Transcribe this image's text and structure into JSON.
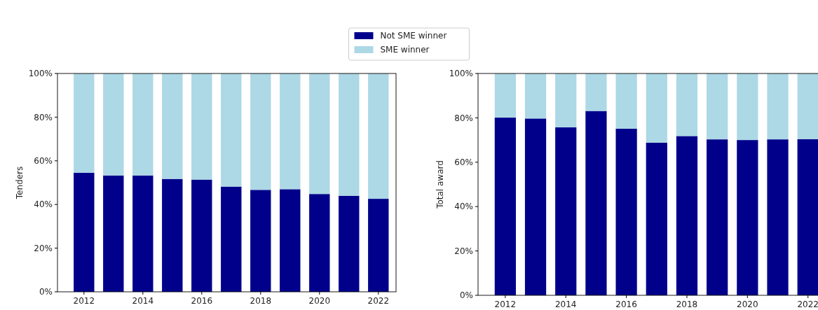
{
  "chart_data": [
    {
      "type": "bar",
      "stacked": true,
      "ylabel": "Tenders",
      "legend": "top",
      "x": [
        2012,
        2013,
        2014,
        2015,
        2016,
        2017,
        2018,
        2019,
        2020,
        2021,
        2022
      ],
      "series": [
        {
          "name": "Not SME winner",
          "color": "#00008b",
          "values": [
            54.5,
            53.3,
            53.3,
            51.7,
            51.4,
            48.2,
            46.7,
            47.0,
            44.8,
            44.0,
            42.6
          ]
        },
        {
          "name": "SME winner",
          "color": "#add8e6",
          "values": [
            45.5,
            46.7,
            46.7,
            48.3,
            48.6,
            51.8,
            53.3,
            53.0,
            55.2,
            56.0,
            57.4
          ]
        }
      ],
      "xlim": [
        2011.1,
        2022.6
      ],
      "xticks": [
        2012,
        2014,
        2016,
        2018,
        2020,
        2022
      ],
      "ylim": [
        0,
        100
      ],
      "yticks": [
        {
          "value": 0,
          "label": "0%"
        },
        {
          "value": 20,
          "label": "20%"
        },
        {
          "value": 40,
          "label": "40%"
        },
        {
          "value": 60,
          "label": "60%"
        },
        {
          "value": 80,
          "label": "80%"
        },
        {
          "value": 100,
          "label": "100%"
        }
      ]
    },
    {
      "type": "bar",
      "stacked": true,
      "ylabel": "Total award",
      "x": [
        2012,
        2013,
        2014,
        2015,
        2016,
        2017,
        2018,
        2019,
        2020,
        2021,
        2022
      ],
      "series": [
        {
          "color": "#00008b",
          "values": [
            80.1,
            79.7,
            75.7,
            83.1,
            75.1,
            68.8,
            71.8,
            70.3,
            70.0,
            70.3,
            70.4
          ]
        },
        {
          "color": "#add8e6",
          "values": [
            19.9,
            20.3,
            24.3,
            16.9,
            24.9,
            31.2,
            28.2,
            29.7,
            30.0,
            29.7,
            29.6
          ]
        }
      ],
      "xlim": [
        2011.1,
        2022.4
      ],
      "xticks": [
        2012,
        2014,
        2016,
        2018,
        2020,
        2022
      ],
      "ylim": [
        0,
        100
      ],
      "yticks": [
        {
          "value": 0,
          "label": "0%"
        },
        {
          "value": 20,
          "label": "20%"
        },
        {
          "value": 40,
          "label": "40%"
        },
        {
          "value": 60,
          "label": "60%"
        },
        {
          "value": 80,
          "label": "80%"
        },
        {
          "value": 100,
          "label": "100%"
        }
      ]
    }
  ]
}
